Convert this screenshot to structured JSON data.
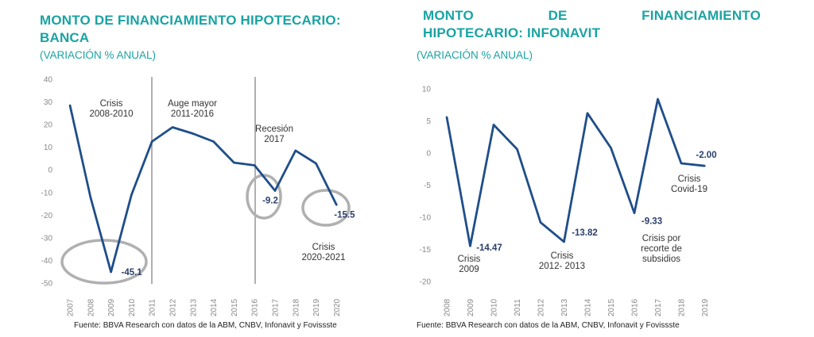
{
  "left": {
    "title_line1": "MONTO DE FINANCIAMIENTO HIPOTECARIO:",
    "title_line2": "BANCA",
    "subtitle": "(VARIACIÓN  % ANUAL)",
    "source": "Fuente: BBVA Research  con datos de la ABM, CNBV, Infonavit  y Fovissste"
  },
  "right": {
    "title_line1": "MONTO DE FINANCIAMIENTO",
    "title_line2": "HIPOTECARIO: INFONAVIT",
    "subtitle": "(VARIACIÓN  % ANUAL)",
    "source": "Fuente: BBVA Research  con datos de la ABM, CNBV, Infonavit  y Fovissste"
  },
  "colors": {
    "line": "#1f4e8a",
    "title": "#1aa3a3",
    "circle": "#b0b0b0",
    "axis": "#c8c8c8",
    "divider": "#a8a8a8"
  },
  "chart_data": [
    {
      "type": "line",
      "title": "MONTO DE FINANCIAMIENTO HIPOTECARIO: BANCA",
      "subtitle": "(VARIACIÓN  % ANUAL)",
      "x": [
        "2007",
        "2008",
        "2009",
        "2010",
        "2011",
        "2012",
        "2013",
        "2014",
        "2015",
        "2016",
        "2017",
        "2018",
        "2019",
        "2020"
      ],
      "series": [
        {
          "values": [
            28.5,
            -12,
            -45.1,
            -11,
            12.5,
            18.8,
            16,
            12.5,
            3.2,
            2,
            -9.2,
            8.5,
            2.8,
            -15.5
          ]
        }
      ],
      "ylim": [
        -50,
        40
      ],
      "yticks": [
        "40",
        "30",
        "20",
        "10",
        "0",
        "-10",
        "-20",
        "-30",
        "-40",
        "-50"
      ],
      "grid": false,
      "data_labels": [
        {
          "x_index": 2,
          "text": "-45.1"
        },
        {
          "x_index": 10,
          "text": "-9.2"
        },
        {
          "x_index": 13,
          "text": "-15.5"
        }
      ],
      "annotations": [
        {
          "lines": [
            "Crisis",
            "2008-2010"
          ]
        },
        {
          "lines": [
            "Auge mayor",
            "2011-2016"
          ]
        },
        {
          "lines": [
            "Recesión",
            "2017"
          ]
        },
        {
          "lines": [
            "Crisis",
            "2020-2021"
          ]
        }
      ],
      "dividers_after_x_index": [
        4,
        9
      ]
    },
    {
      "type": "line",
      "title": "MONTO DE FINANCIAMIENTO HIPOTECARIO: INFONAVIT",
      "subtitle": "(VARIACIÓN  % ANUAL)",
      "x": [
        "2008",
        "2009",
        "2010",
        "2011",
        "2012",
        "2013",
        "2014",
        "2015",
        "2016",
        "2017",
        "2018",
        "2019"
      ],
      "series": [
        {
          "values": [
            5.6,
            -14.47,
            4.4,
            0.6,
            -10.8,
            -13.82,
            6.2,
            0.8,
            -9.33,
            8.4,
            -1.6,
            -2.0
          ]
        }
      ],
      "ylim": [
        -20,
        10
      ],
      "yticks": [
        "10",
        "5",
        "0",
        "-5",
        "-10",
        "-15",
        "-20"
      ],
      "grid": false,
      "data_labels": [
        {
          "x_index": 1,
          "text": "-14.47"
        },
        {
          "x_index": 5,
          "text": "-13.82"
        },
        {
          "x_index": 8,
          "text": "-9.33"
        },
        {
          "x_index": 11,
          "text": "-2.00"
        }
      ],
      "annotations": [
        {
          "lines": [
            "Crisis",
            "2009"
          ]
        },
        {
          "lines": [
            "Crisis",
            "2012- 2013"
          ]
        },
        {
          "lines": [
            "Crisis por",
            "recorte de",
            "subsidios"
          ]
        },
        {
          "lines": [
            "Crisis",
            "Covid-19"
          ]
        }
      ]
    }
  ]
}
